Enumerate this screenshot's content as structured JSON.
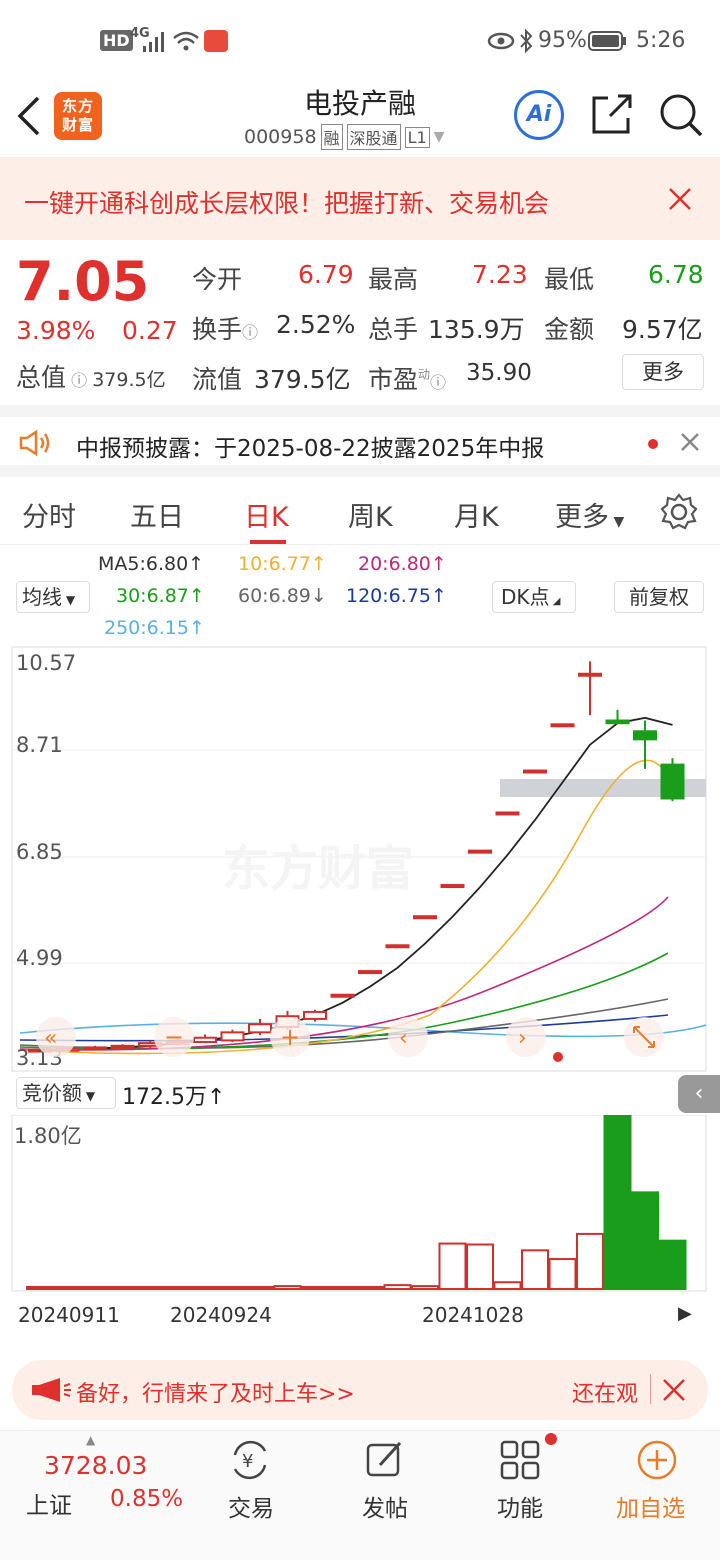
{
  "status_bar": {
    "hd": "HD",
    "net": "4G",
    "battery": "95%",
    "time": "5:26"
  },
  "header": {
    "logo": "东方财富",
    "title": "电投产融",
    "code": "000958",
    "tag_rong": "融",
    "tag_sgt": "深股通",
    "tag_level": "L1",
    "ai": "Ai"
  },
  "banner": {
    "text": "一键开通科创成长层权限！把握打新、交易机会"
  },
  "quote": {
    "price": "7.05",
    "change_pct": "3.98%",
    "change": "0.27",
    "open_label": "今开",
    "open": "6.79",
    "high_label": "最高",
    "high": "7.23",
    "low_label": "最低",
    "low": "6.78",
    "turnover_label": "换手",
    "turnover": "2.52%",
    "volume_label": "总手",
    "volume": "135.9万",
    "amount_label": "金额",
    "amount": "9.57亿",
    "total_mv_label": "总值",
    "total_mv": "379.5亿",
    "float_mv_label": "流值",
    "float_mv": "379.5亿",
    "pe_label": "市盈",
    "pe_sup": "动",
    "pe": "35.90",
    "more": "更多"
  },
  "notice": {
    "text": "中报预披露：于2025-08-22披露2025年中报"
  },
  "tabs": [
    "分时",
    "五日",
    "日K",
    "周K",
    "月K",
    "更多"
  ],
  "ma": {
    "selector": "均线",
    "dk": "DK点",
    "adjust": "前复权",
    "items": [
      {
        "label": "MA5:6.80↑",
        "color": "#222222"
      },
      {
        "label": "10:6.77↑",
        "color": "#f0b030"
      },
      {
        "label": "20:6.80↑",
        "color": "#c0287a"
      },
      {
        "label": "30:6.87↑",
        "color": "#1a9d1a"
      },
      {
        "label": "60:6.89↓",
        "color": "#666666"
      },
      {
        "label": "120:6.75↑",
        "color": "#1c3a9a"
      },
      {
        "label": "250:6.15↑",
        "color": "#5ab0e0"
      }
    ]
  },
  "chart_data": {
    "type": "candlestick",
    "y_ticks": [
      "10.57",
      "8.71",
      "6.85",
      "4.99",
      "3.13"
    ],
    "ylim": [
      3.13,
      10.57
    ],
    "watermark": "东方财富",
    "candles": [
      {
        "o": 3.35,
        "c": 3.38,
        "h": 3.4,
        "l": 3.33
      },
      {
        "o": 3.36,
        "c": 3.4,
        "h": 3.42,
        "l": 3.35
      },
      {
        "o": 3.4,
        "c": 3.42,
        "h": 3.45,
        "l": 3.38
      },
      {
        "o": 3.42,
        "c": 3.45,
        "h": 3.48,
        "l": 3.4
      },
      {
        "o": 3.45,
        "c": 3.5,
        "h": 3.55,
        "l": 3.42
      },
      {
        "o": 3.48,
        "c": 3.52,
        "h": 3.58,
        "l": 3.45
      },
      {
        "o": 3.52,
        "c": 3.6,
        "h": 3.66,
        "l": 3.5
      },
      {
        "o": 3.55,
        "c": 3.7,
        "h": 3.75,
        "l": 3.52
      },
      {
        "o": 3.7,
        "c": 3.85,
        "h": 3.95,
        "l": 3.65
      },
      {
        "o": 3.8,
        "c": 4.0,
        "h": 4.1,
        "l": 3.75
      },
      {
        "o": 3.95,
        "c": 4.08,
        "h": 4.12,
        "l": 3.9
      },
      {
        "o": 4.4,
        "c": 4.4,
        "h": 4.4,
        "l": 4.4
      },
      {
        "o": 4.84,
        "c": 4.84,
        "h": 4.84,
        "l": 4.84
      },
      {
        "o": 5.32,
        "c": 5.32,
        "h": 5.32,
        "l": 5.32
      },
      {
        "o": 5.86,
        "c": 5.86,
        "h": 5.86,
        "l": 5.86
      },
      {
        "o": 6.44,
        "c": 6.44,
        "h": 6.44,
        "l": 6.44
      },
      {
        "o": 7.08,
        "c": 7.08,
        "h": 7.08,
        "l": 7.08
      },
      {
        "o": 7.79,
        "c": 7.79,
        "h": 7.79,
        "l": 7.79
      },
      {
        "o": 8.57,
        "c": 8.57,
        "h": 8.57,
        "l": 8.57
      },
      {
        "o": 9.43,
        "c": 9.43,
        "h": 9.43,
        "l": 9.43
      },
      {
        "o": 10.37,
        "c": 10.37,
        "h": 10.6,
        "l": 9.6
      },
      {
        "o": 9.5,
        "c": 9.45,
        "h": 9.7,
        "l": 9.45
      },
      {
        "o": 9.3,
        "c": 9.15,
        "h": 9.5,
        "l": 8.6
      },
      {
        "o": 8.68,
        "c": 8.05,
        "h": 8.8,
        "l": 8.0
      }
    ],
    "ma5": [
      3.4,
      3.42,
      3.45,
      3.5,
      3.55,
      3.62,
      3.72,
      3.85,
      4.02,
      4.25,
      4.55,
      4.9,
      5.35,
      5.85,
      6.4,
      7.0,
      7.65,
      8.35,
      9.05,
      9.45,
      9.55,
      9.42
    ]
  },
  "volume": {
    "selector": "竞价额",
    "value": "172.5万↑",
    "y_label": "1.80亿",
    "bars": [
      0.01,
      0.01,
      0.01,
      0.01,
      0.01,
      0.01,
      0.01,
      0.01,
      0.02,
      0.03,
      0.02,
      0.01,
      0.02,
      0.04,
      0.03,
      0.47,
      0.46,
      0.07,
      0.4,
      0.31,
      0.57,
      1.8,
      1.0,
      0.5
    ],
    "dates": [
      "20240911",
      "20240924",
      "20241028"
    ]
  },
  "promo": {
    "text": "备好，行情来了及时上车>>",
    "right": "还在观"
  },
  "bottom_nav": {
    "index_value": "3728.03",
    "index_name": "上证",
    "index_pct": "0.85%",
    "trade": "交易",
    "post": "发帖",
    "func": "功能",
    "add": "加自选"
  }
}
